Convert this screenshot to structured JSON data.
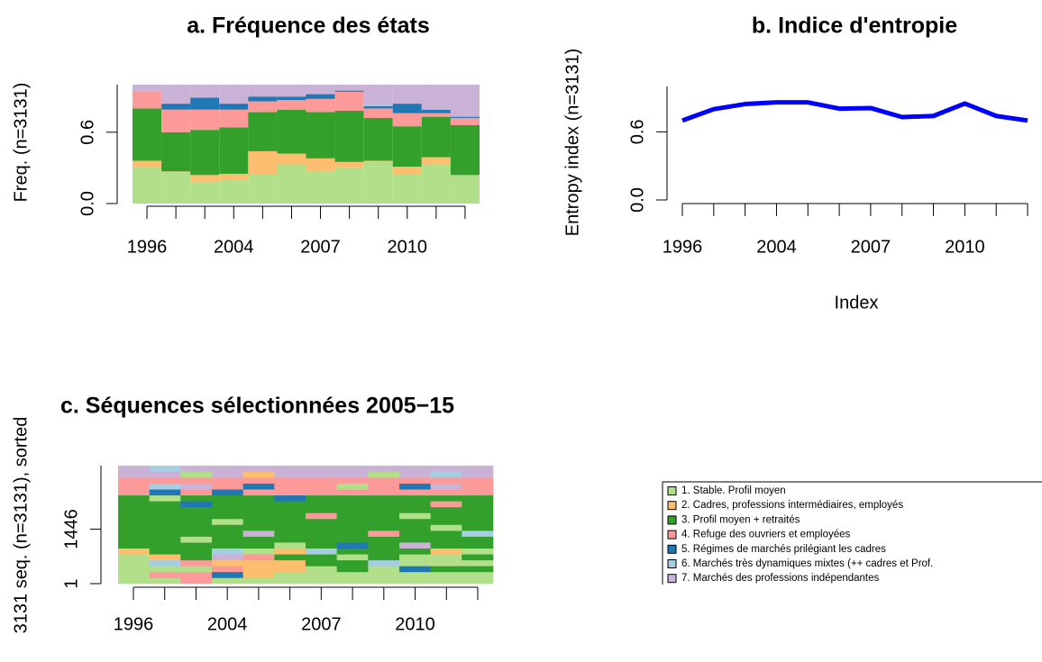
{
  "chart_data": [
    {
      "type": "stacked_bar",
      "title": "a. Fréquence des états",
      "y_label": "Freq. (n=3131)",
      "categories": [
        "1996",
        null,
        null,
        "2004",
        null,
        null,
        "2007",
        null,
        null,
        "2010",
        null,
        null
      ],
      "ylim": [
        0,
        1
      ],
      "yticks": [
        {
          "value": 0,
          "label": "0.0"
        },
        0.6
      ],
      "series": [
        {
          "name": "1. Stable. Profil moyen",
          "color": "#B2DF8A",
          "values": [
            0.31,
            0.26,
            0.18,
            0.2,
            0.25,
            0.33,
            0.27,
            0.3,
            0.35,
            0.25,
            0.33,
            0.24
          ]
        },
        {
          "name": "2. Cadres, professions intermédiaires, employés",
          "color": "#FDBF6F",
          "values": [
            0.05,
            0.01,
            0.06,
            0.05,
            0.19,
            0.09,
            0.11,
            0.05,
            0.01,
            0.06,
            0.06,
            0.0
          ]
        },
        {
          "name": "3. Profil moyen + retraités",
          "color": "#33A02C",
          "values": [
            0.44,
            0.33,
            0.38,
            0.39,
            0.33,
            0.37,
            0.39,
            0.43,
            0.36,
            0.34,
            0.34,
            0.42
          ]
        },
        {
          "name": "4. Refuge des ouvriers et employées",
          "color": "#FB9A99",
          "values": [
            0.14,
            0.19,
            0.17,
            0.15,
            0.09,
            0.08,
            0.11,
            0.16,
            0.08,
            0.11,
            0.03,
            0.06
          ]
        },
        {
          "name": "5. Régimes de marchés prilégiant les cadres",
          "color": "#1F78B4",
          "values": [
            0.0,
            0.05,
            0.1,
            0.05,
            0.04,
            0.03,
            0.04,
            0.01,
            0.02,
            0.08,
            0.03,
            0.01
          ]
        },
        {
          "name": "6. Marchés très dynamiques mixtes (++ cadres et Prof.",
          "color": "#A6CEE3",
          "values": [
            0.0,
            0.0,
            0.0,
            0.0,
            0.0,
            0.0,
            0.0,
            0.0,
            0.01,
            0.0,
            0.0,
            0.0
          ]
        },
        {
          "name": "7. Marchés des professions indépendantes",
          "color": "#CAB2D6",
          "values": [
            0.06,
            0.16,
            0.11,
            0.16,
            0.1,
            0.1,
            0.08,
            0.05,
            0.17,
            0.16,
            0.21,
            0.27
          ]
        }
      ]
    },
    {
      "type": "line",
      "title": "b. Indice d'entropie",
      "x_label": "Index",
      "y_label": "Entropy index (n=3131)",
      "categories": [
        "1996",
        null,
        null,
        "2004",
        null,
        null,
        "2007",
        null,
        null,
        "2010",
        null,
        null
      ],
      "ylim": [
        0,
        1
      ],
      "yticks": [
        {
          "value": 0,
          "label": "0.0"
        },
        0.6
      ],
      "series": [
        {
          "color": "#0000FF",
          "values": [
            0.7,
            0.8,
            0.845,
            0.86,
            0.86,
            0.805,
            0.81,
            0.73,
            0.74,
            0.85,
            0.74,
            0.7
          ]
        }
      ]
    },
    {
      "type": "sequence_index",
      "title": "c. Séquences sélectionnées 2005−15",
      "y_label": "3131 seq. (n=3131), sorted",
      "categories": [
        "1996",
        null,
        null,
        "2004",
        null,
        null,
        "2007",
        null,
        null,
        "2010",
        null,
        null
      ],
      "ylim": [
        1,
        3131
      ],
      "yticks": [
        1,
        1446
      ],
      "sequences": [
        [
          1,
          1,
          4,
          1,
          1,
          1,
          1,
          1,
          1,
          1,
          1,
          1
        ],
        [
          1,
          4,
          4,
          5,
          2,
          1,
          1,
          1,
          1,
          1,
          1,
          1
        ],
        [
          1,
          1,
          1,
          4,
          2,
          2,
          1,
          3,
          1,
          5,
          3,
          3
        ],
        [
          1,
          6,
          4,
          2,
          2,
          2,
          3,
          3,
          6,
          1,
          1,
          1
        ],
        [
          1,
          2,
          3,
          7,
          4,
          3,
          3,
          1,
          3,
          1,
          1,
          3
        ],
        [
          2,
          3,
          3,
          6,
          1,
          2,
          6,
          3,
          3,
          3,
          2,
          1
        ],
        [
          3,
          3,
          3,
          3,
          3,
          1,
          3,
          5,
          3,
          7,
          3,
          3
        ],
        [
          3,
          3,
          1,
          3,
          3,
          3,
          3,
          3,
          3,
          3,
          3,
          3
        ],
        [
          3,
          3,
          3,
          3,
          7,
          3,
          3,
          3,
          4,
          3,
          3,
          6
        ],
        [
          3,
          3,
          3,
          3,
          3,
          3,
          3,
          3,
          3,
          3,
          1,
          3
        ],
        [
          3,
          3,
          3,
          1,
          3,
          3,
          3,
          3,
          3,
          3,
          3,
          3
        ],
        [
          3,
          3,
          3,
          3,
          3,
          3,
          4,
          3,
          3,
          1,
          3,
          3
        ],
        [
          3,
          3,
          3,
          3,
          3,
          3,
          3,
          3,
          3,
          3,
          3,
          3
        ],
        [
          3,
          3,
          5,
          3,
          3,
          3,
          3,
          3,
          3,
          3,
          4,
          3
        ],
        [
          3,
          1,
          3,
          3,
          3,
          5,
          3,
          3,
          3,
          3,
          3,
          3
        ],
        [
          4,
          5,
          4,
          5,
          4,
          4,
          4,
          4,
          4,
          4,
          4,
          4
        ],
        [
          4,
          6,
          7,
          4,
          5,
          4,
          4,
          1,
          4,
          5,
          7,
          4
        ],
        [
          4,
          4,
          4,
          4,
          4,
          4,
          4,
          4,
          4,
          4,
          4,
          4
        ],
        [
          7,
          7,
          1,
          7,
          2,
          7,
          7,
          7,
          1,
          7,
          6,
          7
        ],
        [
          7,
          6,
          7,
          7,
          7,
          7,
          7,
          7,
          7,
          7,
          7,
          7
        ]
      ]
    }
  ]
}
